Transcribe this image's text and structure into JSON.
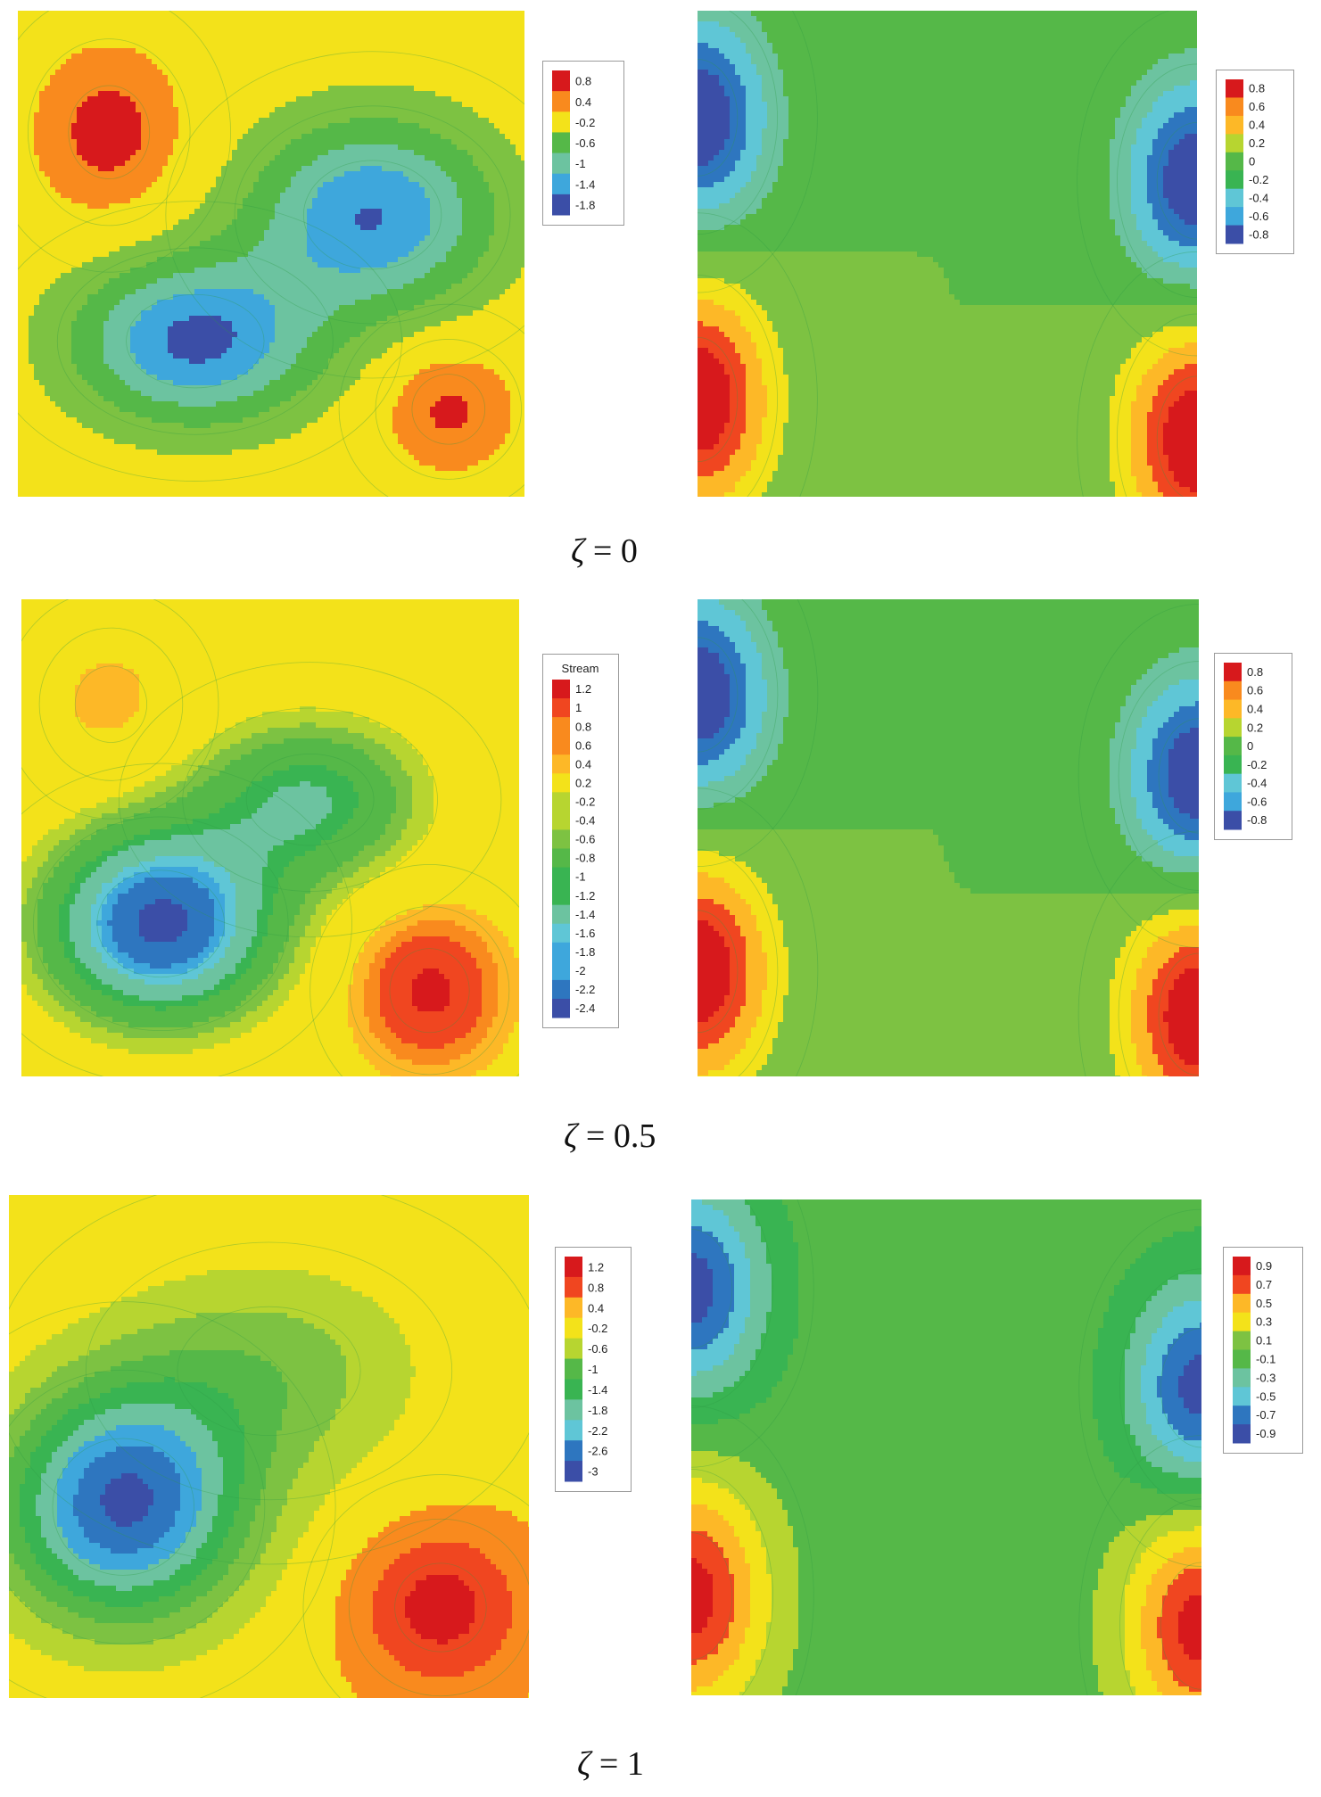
{
  "chart_data": [
    {
      "type": "heatmap",
      "panel": "left",
      "caption_symbol": "ζ",
      "caption_value": "0",
      "legend": {
        "title": "",
        "levels": [
          "0.8",
          "0.4",
          "-0.2",
          "-0.6",
          "-1",
          "-1.4",
          "-1.8"
        ]
      },
      "features": [
        {
          "x": 0.18,
          "y": 0.25,
          "value": 1.0,
          "sx": 0.1,
          "sy": 0.12
        },
        {
          "x": 0.85,
          "y": 0.82,
          "value": 0.9,
          "sx": 0.09,
          "sy": 0.09
        },
        {
          "x": 0.35,
          "y": 0.68,
          "value": -1.9,
          "sx": 0.17,
          "sy": 0.12
        },
        {
          "x": 0.7,
          "y": 0.42,
          "value": -1.8,
          "sx": 0.17,
          "sy": 0.14
        }
      ],
      "background_value": 0.1
    },
    {
      "type": "heatmap",
      "panel": "right",
      "caption_symbol": "ζ",
      "caption_value": "0",
      "legend": {
        "title": "",
        "levels": [
          "0.8",
          "0.6",
          "0.4",
          "0.2",
          "0",
          "-0.2",
          "-0.4",
          "-0.6",
          "-0.8"
        ]
      },
      "features": [
        {
          "x": 0.0,
          "y": 0.22,
          "value": -1.0,
          "sx": 0.1,
          "sy": 0.15
        },
        {
          "x": 1.0,
          "y": 0.35,
          "value": -1.0,
          "sx": 0.1,
          "sy": 0.15
        },
        {
          "x": 0.0,
          "y": 0.8,
          "value": 1.0,
          "sx": 0.1,
          "sy": 0.16
        },
        {
          "x": 1.0,
          "y": 0.88,
          "value": 1.0,
          "sx": 0.1,
          "sy": 0.16
        }
      ],
      "background_value": 0.0
    },
    {
      "type": "heatmap",
      "panel": "left",
      "caption_symbol": "ζ",
      "caption_value": "0.5",
      "legend": {
        "title": "Stream",
        "levels": [
          "1.2",
          "1",
          "0.8",
          "0.6",
          "0.4",
          "0.2",
          "-0.2",
          "-0.4",
          "-0.6",
          "-0.8",
          "-1",
          "-1.2",
          "-1.4",
          "-1.6",
          "-1.8",
          "-2",
          "-2.2",
          "-2.4"
        ]
      },
      "features": [
        {
          "x": 0.18,
          "y": 0.22,
          "value": 0.5,
          "sx": 0.09,
          "sy": 0.1
        },
        {
          "x": 0.82,
          "y": 0.82,
          "value": 1.3,
          "sx": 0.1,
          "sy": 0.11
        },
        {
          "x": 0.28,
          "y": 0.68,
          "value": -2.5,
          "sx": 0.16,
          "sy": 0.14
        },
        {
          "x": 0.58,
          "y": 0.42,
          "value": -1.2,
          "sx": 0.16,
          "sy": 0.12
        }
      ],
      "background_value": 0.2
    },
    {
      "type": "heatmap",
      "panel": "right",
      "caption_symbol": "ζ",
      "caption_value": "0.5",
      "legend": {
        "title": "",
        "levels": [
          "0.8",
          "0.6",
          "0.4",
          "0.2",
          "0",
          "-0.2",
          "-0.4",
          "-0.6",
          "-0.8"
        ]
      },
      "features": [
        {
          "x": 0.0,
          "y": 0.2,
          "value": -1.0,
          "sx": 0.1,
          "sy": 0.15
        },
        {
          "x": 1.0,
          "y": 0.37,
          "value": -1.0,
          "sx": 0.1,
          "sy": 0.15
        },
        {
          "x": 0.0,
          "y": 0.78,
          "value": 1.0,
          "sx": 0.1,
          "sy": 0.16
        },
        {
          "x": 1.0,
          "y": 0.87,
          "value": 1.0,
          "sx": 0.1,
          "sy": 0.16
        }
      ],
      "background_value": 0.0
    },
    {
      "type": "heatmap",
      "panel": "left",
      "caption_symbol": "ζ",
      "caption_value": "1",
      "legend": {
        "title": "",
        "levels": [
          "1.2",
          "0.8",
          "0.4",
          "-0.2",
          "-0.6",
          "-1",
          "-1.4",
          "-1.8",
          "-2.2",
          "-2.6",
          "-3"
        ]
      },
      "features": [
        {
          "x": 0.22,
          "y": 0.62,
          "value": -3.0,
          "sx": 0.17,
          "sy": 0.17
        },
        {
          "x": 0.5,
          "y": 0.35,
          "value": -0.8,
          "sx": 0.22,
          "sy": 0.16
        },
        {
          "x": 0.83,
          "y": 0.82,
          "value": 1.4,
          "sx": 0.11,
          "sy": 0.11
        }
      ],
      "background_value": 0.3
    },
    {
      "type": "heatmap",
      "panel": "right",
      "caption_symbol": "ζ",
      "caption_value": "1",
      "legend": {
        "title": "",
        "levels": [
          "0.9",
          "0.7",
          "0.5",
          "0.3",
          "0.1",
          "-0.1",
          "-0.3",
          "-0.5",
          "-0.7",
          "-0.9"
        ]
      },
      "features": [
        {
          "x": 0.0,
          "y": 0.18,
          "value": -1.0,
          "sx": 0.1,
          "sy": 0.15
        },
        {
          "x": 1.0,
          "y": 0.38,
          "value": -1.0,
          "sx": 0.1,
          "sy": 0.15
        },
        {
          "x": 0.0,
          "y": 0.8,
          "value": 1.0,
          "sx": 0.1,
          "sy": 0.16
        },
        {
          "x": 1.0,
          "y": 0.86,
          "value": 1.0,
          "sx": 0.1,
          "sy": 0.16
        }
      ],
      "background_value": 0.0
    }
  ],
  "colors": [
    "#d7191c",
    "#f04620",
    "#f98a1e",
    "#fdb827",
    "#f3e21a",
    "#b7d530",
    "#7dc242",
    "#55b848",
    "#39b452",
    "#6cc3a0",
    "#5fc6d6",
    "#3ea7dc",
    "#2e76bf",
    "#3b4ea7"
  ],
  "captions": [
    {
      "symbol": "ζ",
      "value": "0"
    },
    {
      "symbol": "ζ",
      "value": "0.5"
    },
    {
      "symbol": "ζ",
      "value": "1"
    }
  ]
}
